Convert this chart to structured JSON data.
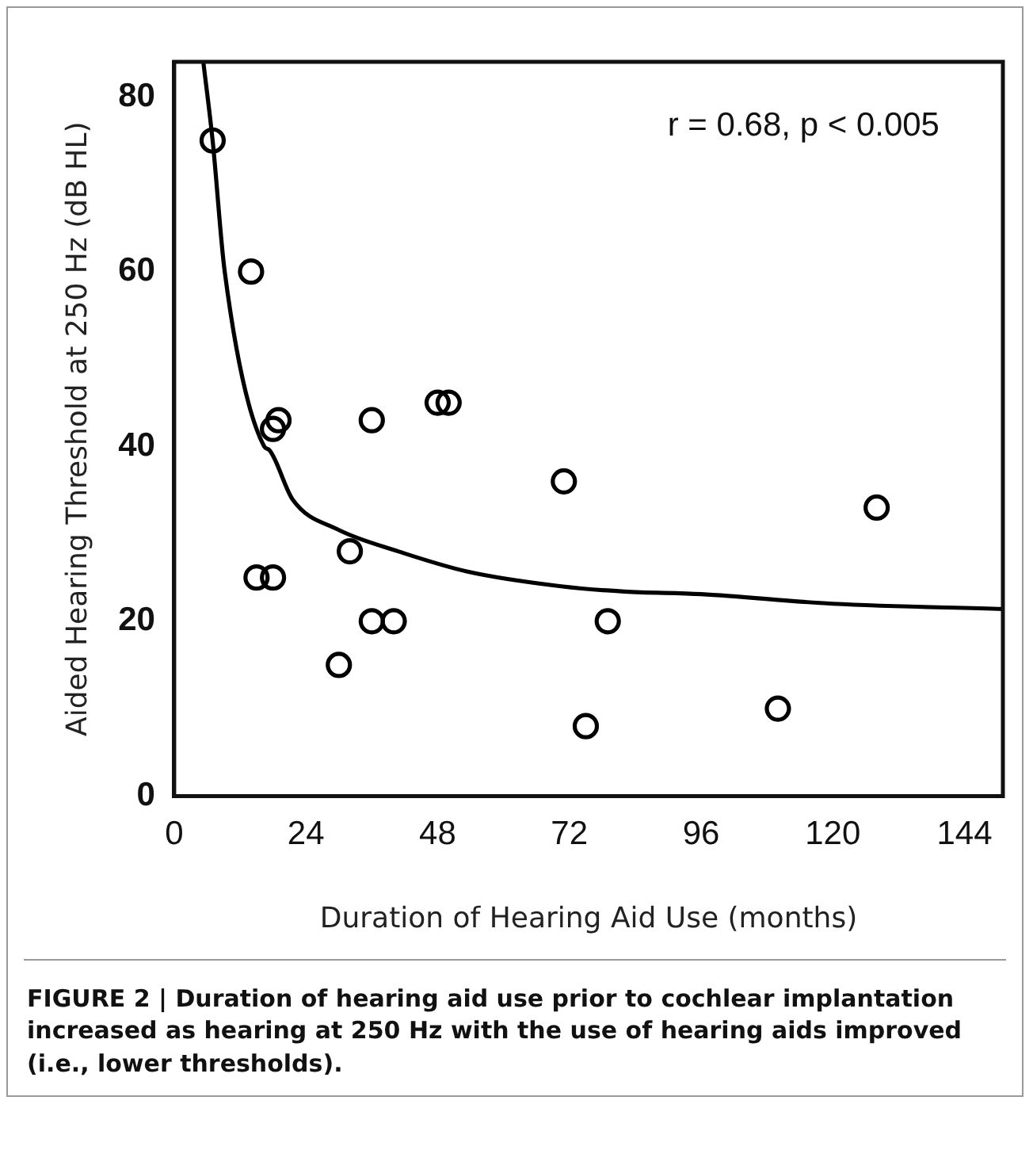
{
  "chart_data": {
    "type": "scatter",
    "xlabel": "Duration of Hearing Aid Use (months)",
    "ylabel": "Aided Hearing Threshold at 250 Hz (dB HL)",
    "xlim": [
      0,
      151
    ],
    "xticks": [
      0,
      24,
      48,
      72,
      96,
      120,
      144
    ],
    "ylim": [
      0,
      84
    ],
    "yticks": [
      0,
      20,
      40,
      60,
      80
    ],
    "grid": false,
    "legend": false,
    "marker": "circle",
    "series": [
      {
        "type": "scatter",
        "color": "#000000",
        "x": [
          7,
          14,
          18,
          19,
          36,
          48,
          50,
          71,
          15,
          18,
          32,
          36,
          40,
          30,
          79,
          75,
          110,
          128
        ],
        "values": [
          75,
          60,
          42,
          43,
          43,
          45,
          45,
          36,
          25,
          25,
          28,
          20,
          20,
          15,
          20,
          8,
          10,
          33
        ]
      },
      {
        "type": "line",
        "color": "#000000",
        "marker": "none",
        "line_style": "solid",
        "x": [
          5.3,
          7,
          9.2,
          16.4,
          17.3,
          21.6,
          29.8,
          40.8,
          53.3,
          70.5,
          82,
          96,
          120,
          151
        ],
        "values": [
          84,
          75,
          60,
          40,
          39.6,
          33.9,
          30.5,
          28,
          25.7,
          24,
          23.4,
          23.1,
          22,
          21.4
        ]
      }
    ],
    "annotations": [
      "r = 0.68, p < 0.005",
      "FIGURE 2 | Duration of hearing aid use prior to cochlear implantation increased as hearing at 250 Hz with the use of hearing aids improved (i.e., lower thresholds)."
    ]
  }
}
